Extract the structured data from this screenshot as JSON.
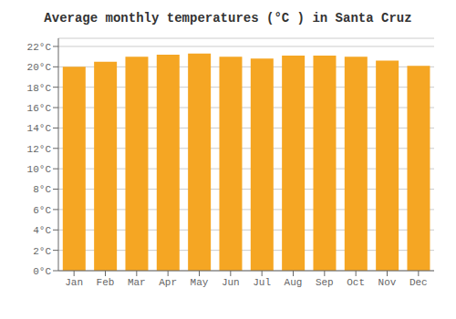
{
  "chart_data": {
    "type": "bar",
    "title": "Average monthly temperatures (°C ) in Santa Cruz",
    "categories": [
      "Jan",
      "Feb",
      "Mar",
      "Apr",
      "May",
      "Jun",
      "Jul",
      "Aug",
      "Sep",
      "Oct",
      "Nov",
      "Dec"
    ],
    "values": [
      20.0,
      20.5,
      21.0,
      21.2,
      21.3,
      21.0,
      20.8,
      21.1,
      21.1,
      21.0,
      20.6,
      20.1
    ],
    "color": "#F5A623",
    "ylim": [
      0,
      22.8
    ],
    "yticks": [
      {
        "value": 0,
        "label": "0°C"
      },
      {
        "value": 2,
        "label": "2°C"
      },
      {
        "value": 4,
        "label": "4°C"
      },
      {
        "value": 6,
        "label": "6°C"
      },
      {
        "value": 8,
        "label": "8°C"
      },
      {
        "value": 10,
        "label": "10°C"
      },
      {
        "value": 12,
        "label": "12°C"
      },
      {
        "value": 14,
        "label": "14°C"
      },
      {
        "value": 16,
        "label": "16°C"
      },
      {
        "value": 18,
        "label": "18°C"
      },
      {
        "value": 20,
        "label": "20°C"
      },
      {
        "value": 22,
        "label": "22°C"
      }
    ],
    "grid": true
  }
}
